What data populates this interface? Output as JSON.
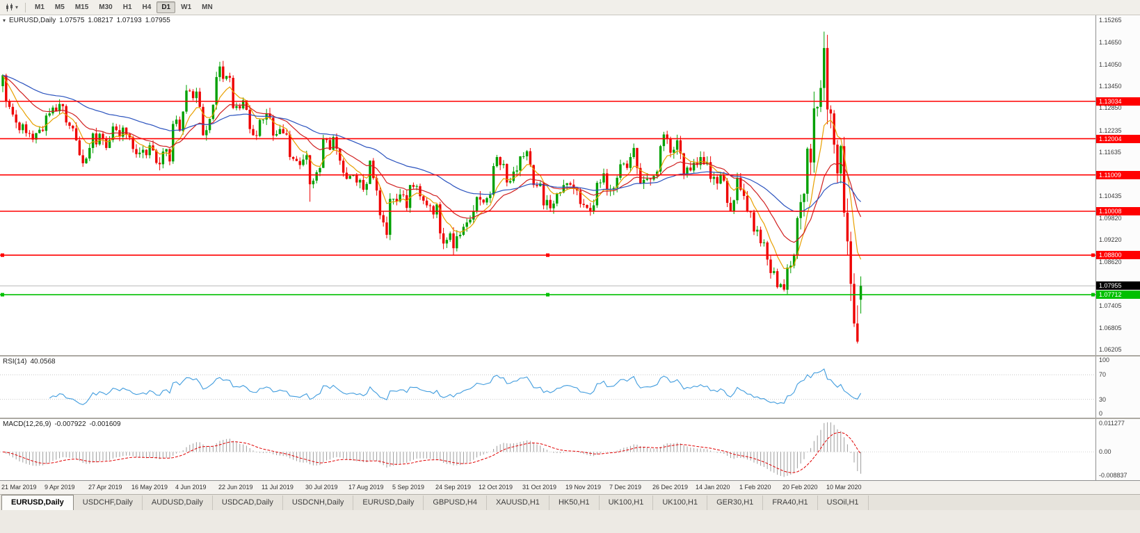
{
  "toolbar": {
    "timeframes": [
      "M1",
      "M5",
      "M15",
      "M30",
      "H1",
      "H4",
      "D1",
      "W1",
      "MN"
    ],
    "active_timeframe": "D1"
  },
  "chart_header": {
    "symbol_label": "EURUSD,Daily",
    "open": "1.07575",
    "high": "1.08217",
    "low": "1.07193",
    "close": "1.07955"
  },
  "price_axis": {
    "gray_labels": [
      "1.15265",
      "1.14650",
      "1.14050",
      "1.13450",
      "1.12850",
      "1.12235",
      "1.11635",
      "1.10435",
      "1.09820",
      "1.09220",
      "1.08620",
      "1.07405",
      "1.06805",
      "1.06205"
    ],
    "current_price": "1.07955"
  },
  "hlines": [
    {
      "price": 1.13034,
      "label": "1.13034",
      "color": "#FF0000",
      "selected": false
    },
    {
      "price": 1.12004,
      "label": "1.12004",
      "color": "#FF0000",
      "selected": false
    },
    {
      "price": 1.11009,
      "label": "1.11009",
      "color": "#FF0000",
      "selected": false
    },
    {
      "price": 1.10008,
      "label": "1.10008",
      "color": "#FF0000",
      "selected": false
    },
    {
      "price": 1.088,
      "label": "1.08800",
      "color": "#FF0000",
      "selected": true
    },
    {
      "price": 1.07712,
      "label": "1.07712",
      "color": "#00C000",
      "selected": true
    }
  ],
  "rsi": {
    "name": "RSI(14)",
    "value": "40.0568",
    "period": 14,
    "levels": [
      "100",
      "70",
      "30",
      "0"
    ],
    "color": "#409CDE"
  },
  "macd": {
    "name": "MACD(12,26,9)",
    "main_value": "-0.007922",
    "signal_value": "-0.001609",
    "fast": 12,
    "slow": 26,
    "signal": 9,
    "axis_max": "0.011277",
    "axis_zero": "0.00",
    "axis_min": "-0.008837",
    "histogram_color": "#9C9C9C",
    "signal_color": "#E00000"
  },
  "date_axis": [
    "21 Mar 2019",
    "9 Apr 2019",
    "27 Apr 2019",
    "16 May 2019",
    "4 Jun 2019",
    "22 Jun 2019",
    "11 Jul 2019",
    "30 Jul 2019",
    "17 Aug 2019",
    "5 Sep 2019",
    "24 Sep 2019",
    "12 Oct 2019",
    "31 Oct 2019",
    "19 Nov 2019",
    "7 Dec 2019",
    "26 Dec 2019",
    "14 Jan 2020",
    "1 Feb 2020",
    "20 Feb 2020",
    "10 Mar 2020"
  ],
  "tabs": {
    "active_index": 0,
    "items": [
      "EURUSD,Daily",
      "USDCHF,Daily",
      "AUDUSD,Daily",
      "USDCAD,Daily",
      "USDCNH,Daily",
      "EURUSD,Daily",
      "GBPUSD,H4",
      "XAUUSD,H1",
      "HK50,H1",
      "UK100,H1",
      "UK100,H1",
      "GER30,H1",
      "FRA40,H1",
      "USOil,H1"
    ],
    "active_label": "EURUSD,Daily"
  },
  "colors": {
    "up": "#00A000",
    "down": "#EE0000",
    "current_price_line": "#B8B8B8"
  },
  "chart_data": {
    "type": "candlestick",
    "symbol": "EURUSD",
    "timeframe": "Daily",
    "title": "EURUSD,Daily",
    "last_candle": {
      "open": 1.07575,
      "high": 1.08217,
      "low": 1.07193,
      "close": 1.07955
    },
    "price_range": {
      "top": 1.154,
      "bottom": 1.0605
    },
    "x_labels": [
      "21 Mar 2019",
      "9 Apr 2019",
      "27 Apr 2019",
      "16 May 2019",
      "4 Jun 2019",
      "22 Jun 2019",
      "11 Jul 2019",
      "30 Jul 2019",
      "17 Aug 2019",
      "5 Sep 2019",
      "24 Sep 2019",
      "12 Oct 2019",
      "31 Oct 2019",
      "19 Nov 2019",
      "7 Dec 2019",
      "26 Dec 2019",
      "14 Jan 2020",
      "1 Feb 2020",
      "20 Feb 2020",
      "10 Mar 2020"
    ],
    "candles_per_label": 13,
    "closes": [
      1.1375,
      1.1302,
      1.1288,
      1.1267,
      1.1245,
      1.1224,
      1.124,
      1.1216,
      1.1214,
      1.1198,
      1.1216,
      1.1225,
      1.1222,
      1.1264,
      1.127,
      1.1286,
      1.1276,
      1.1296,
      1.129,
      1.1245,
      1.1236,
      1.1229,
      1.1196,
      1.1155,
      1.1133,
      1.1146,
      1.1175,
      1.1215,
      1.1185,
      1.1214,
      1.12,
      1.1175,
      1.1197,
      1.1234,
      1.1224,
      1.1206,
      1.1231,
      1.1213,
      1.1204,
      1.1172,
      1.1158,
      1.1162,
      1.117,
      1.1155,
      1.1182,
      1.1168,
      1.1134,
      1.113,
      1.1165,
      1.1172,
      1.1138,
      1.1241,
      1.1253,
      1.1222,
      1.1275,
      1.1333,
      1.1331,
      1.1312,
      1.133,
      1.1288,
      1.121,
      1.1224,
      1.1255,
      1.1294,
      1.137,
      1.1399,
      1.1365,
      1.1373,
      1.1368,
      1.1285,
      1.129,
      1.1284,
      1.1306,
      1.128,
      1.1227,
      1.121,
      1.1208,
      1.1252,
      1.1253,
      1.127,
      1.1258,
      1.1209,
      1.1213,
      1.1227,
      1.1215,
      1.1212,
      1.115,
      1.1145,
      1.1139,
      1.1128,
      1.1143,
      1.1155,
      1.1075,
      1.1085,
      1.1108,
      1.112,
      1.12,
      1.1197,
      1.117,
      1.1205,
      1.1173,
      1.114,
      1.1107,
      1.109,
      1.1098,
      1.11,
      1.108,
      1.1087,
      1.106,
      1.1076,
      1.114,
      1.1092,
      1.1058,
      1.099,
      1.097,
      1.0936,
      1.1035,
      1.1035,
      1.1028,
      1.1047,
      1.1045,
      1.101,
      1.1073,
      1.1068,
      1.107,
      1.1042,
      1.103,
      1.1017,
      1.1015,
      1.0992,
      1.102,
      1.094,
      1.0912,
      1.0922,
      1.094,
      1.0899,
      1.0932,
      1.0936,
      1.0958,
      1.097,
      1.0978,
      1.1002,
      1.104,
      1.1033,
      1.1025,
      1.1037,
      1.1046,
      1.1125,
      1.115,
      1.1128,
      1.1131,
      1.108,
      1.1084,
      1.111,
      1.1113,
      1.1152,
      1.1152,
      1.1166,
      1.1128,
      1.1073,
      1.107,
      1.1077,
      1.1017,
      1.1032,
      1.1009,
      1.1022,
      1.105,
      1.1053,
      1.1073,
      1.1078,
      1.1074,
      1.1063,
      1.1058,
      1.1021,
      1.1018,
      1.101,
      1.1,
      1.1017,
      1.1079,
      1.108,
      1.1105,
      1.1059,
      1.1061,
      1.1065,
      1.1093,
      1.113,
      1.1132,
      1.112,
      1.115,
      1.1175,
      1.112,
      1.1078,
      1.1087,
      1.109,
      1.1088,
      1.1098,
      1.111,
      1.118,
      1.1212,
      1.12,
      1.1162,
      1.117,
      1.1196,
      1.116,
      1.1103,
      1.1121,
      1.1113,
      1.1134,
      1.1128,
      1.115,
      1.113,
      1.1136,
      1.109,
      1.1095,
      1.1077,
      1.1102,
      1.1085,
      1.1024,
      1.1,
      1.1031,
      1.1093,
      1.106,
      1.1043,
      1.1,
      1.0998,
      1.0945,
      1.095,
      1.0913,
      1.0915,
      1.0868,
      1.0831,
      1.0836,
      1.0792,
      1.08,
      1.0785,
      1.0846,
      1.0851,
      1.088,
      1.0982,
      1.1026,
      1.1049,
      1.1173,
      1.1135,
      1.1284,
      1.1288,
      1.134,
      1.145,
      1.1281,
      1.127,
      1.1184,
      1.1105,
      1.118,
      1.0997,
      1.0918,
      1.0801,
      1.0692,
      1.0642,
      1.0796
    ],
    "overrides": {
      "65": {
        "h": 1.1412
      },
      "92": {
        "l": 1.1027
      },
      "135": {
        "l": 1.0879
      },
      "246": {
        "h": 1.1495
      },
      "256": {
        "l": 1.0637
      },
      "257": {
        "o": 1.07575,
        "h": 1.08217,
        "l": 1.07193,
        "c": 1.07955
      }
    },
    "moving_averages": [
      {
        "period": 8,
        "color": "#E8A000"
      },
      {
        "period": 21,
        "color": "#D02020"
      },
      {
        "period": 55,
        "color": "#2A52BE"
      }
    ]
  }
}
